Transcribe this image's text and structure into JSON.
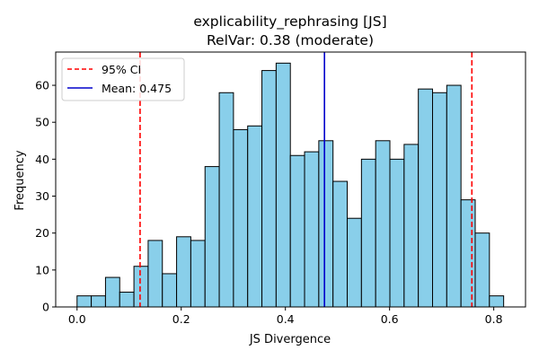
{
  "chart_data": {
    "type": "bar",
    "title": "explicability_rephrasing [JS]",
    "subtitle": "RelVar: 0.38 (moderate)",
    "xlabel": "JS Divergence",
    "ylabel": "Frequency",
    "xlim": [
      -0.041,
      0.861
    ],
    "ylim": [
      0,
      69
    ],
    "xticks": [
      0.0,
      0.2,
      0.4,
      0.6,
      0.8
    ],
    "xtick_labels": [
      "0.0",
      "0.2",
      "0.4",
      "0.6",
      "0.8"
    ],
    "yticks": [
      0,
      10,
      20,
      30,
      40,
      50,
      60
    ],
    "ytick_labels": [
      "0",
      "10",
      "20",
      "30",
      "40",
      "50",
      "60"
    ],
    "bin_start": 0.0,
    "bin_width": 0.0273,
    "values": [
      3,
      3,
      8,
      4,
      11,
      18,
      9,
      19,
      18,
      38,
      58,
      48,
      49,
      64,
      66,
      41,
      42,
      45,
      34,
      24,
      40,
      45,
      40,
      44,
      59,
      58,
      60,
      29,
      20,
      3
    ],
    "bar_color": "#89CFEA",
    "edge_color": "#000000",
    "grid": false,
    "lines": [
      {
        "x": 0.121,
        "color": "#ff0000",
        "style": "dashed"
      },
      {
        "x": 0.475,
        "color": "#0000cc",
        "style": "solid"
      },
      {
        "x": 0.758,
        "color": "#ff0000",
        "style": "dashed"
      }
    ],
    "legend": {
      "position": "top-left",
      "entries": [
        {
          "label": "95% CI",
          "color": "#ff0000",
          "style": "dashed"
        },
        {
          "label": "Mean: 0.475",
          "color": "#0000cc",
          "style": "solid"
        }
      ]
    }
  }
}
